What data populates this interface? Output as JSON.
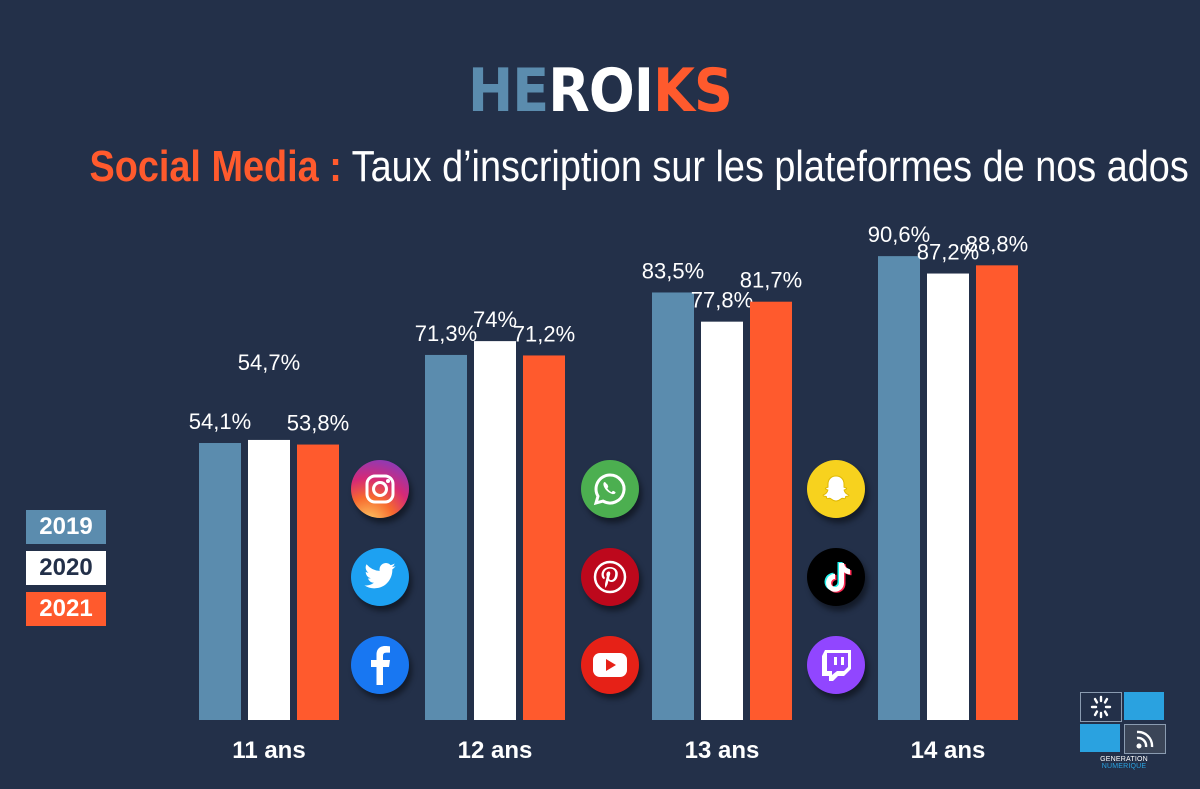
{
  "logo": {
    "part1": "HE",
    "part2": "ROI",
    "part3": "KS"
  },
  "title": {
    "highlight": "Social Media :",
    "rest": " Taux d’inscription sur les plateformes de nos ados"
  },
  "legend": [
    {
      "label": "2019",
      "color": "#5b8cae",
      "text_color": "#ffffff"
    },
    {
      "label": "2020",
      "color": "#ffffff",
      "text_color": "#233049"
    },
    {
      "label": "2021",
      "color": "#ff5a2d",
      "text_color": "#ffffff"
    }
  ],
  "chart_data": {
    "type": "bar",
    "title": "Social Media : Taux d’inscription sur les plateformes de nos ados",
    "categories": [
      "11 ans",
      "12 ans",
      "13 ans",
      "14 ans"
    ],
    "series": [
      {
        "name": "2019",
        "color": "#5b8cae",
        "values": [
          54.1,
          71.3,
          83.5,
          90.6
        ],
        "labels": [
          "54,1%",
          "71,3%",
          "83,5%",
          "90,6%"
        ]
      },
      {
        "name": "2020",
        "color": "#ffffff",
        "values": [
          54.7,
          74,
          77.8,
          87.2
        ],
        "labels": [
          "54,7%",
          "74%",
          "77,8%",
          "87,2%"
        ]
      },
      {
        "name": "2021",
        "color": "#ff5a2d",
        "values": [
          53.8,
          71.2,
          81.7,
          88.8
        ],
        "labels": [
          "53,8%",
          "71,2%",
          "81,7%",
          "88,8%"
        ]
      }
    ],
    "ylim": [
      0,
      100
    ],
    "grid": false,
    "legend_position": "left"
  },
  "platform_icons": [
    [
      "instagram-icon",
      "twitter-icon",
      "facebook-icon"
    ],
    [
      "whatsapp-icon",
      "pinterest-icon",
      "youtube-icon"
    ],
    [
      "snapchat-icon",
      "tiktok-icon",
      "twitch-icon"
    ]
  ],
  "footer_logo": {
    "text1": "GENERATION ",
    "text2": "NUMERIQUE"
  }
}
